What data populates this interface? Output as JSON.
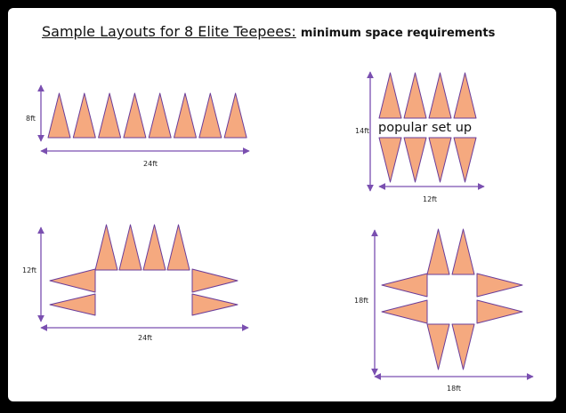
{
  "title": {
    "main": "Sample Layouts for 8 Elite Teepees:",
    "rest": "minimum space requirements"
  },
  "layouts": [
    {
      "name": "row",
      "height_label": "8ft",
      "width_label": "24ft",
      "teepees": 8
    },
    {
      "name": "double-row",
      "height_label": "14ft",
      "width_label": "12ft",
      "teepees": 8,
      "annotation": "popular set up"
    },
    {
      "name": "u-shape",
      "height_label": "12ft",
      "width_label": "24ft",
      "teepees": 8
    },
    {
      "name": "cross",
      "height_label": "18ft",
      "width_label": "18ft",
      "teepees": 8
    }
  ],
  "colors": {
    "teepee_fill": "#f5a97f",
    "teepee_stroke": "#6a3d9a",
    "arrow": "#7a4fb0",
    "frame_border": "#000000"
  }
}
